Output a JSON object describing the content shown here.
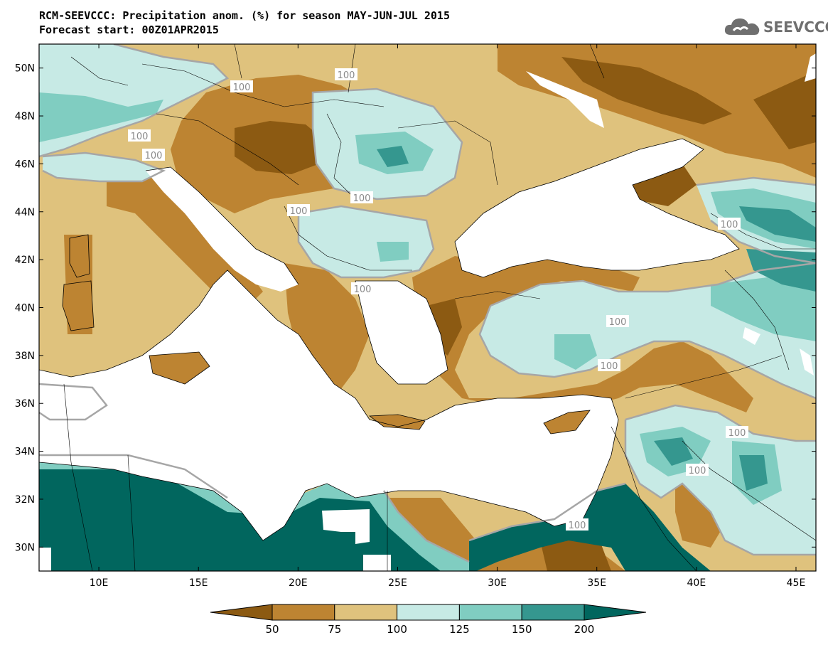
{
  "title": {
    "line1": "RCM-SEEVCCC: Precipitation anom. (%) for season MAY-JUN-JUL 2015",
    "line2": "Forecast start: 00Z01APR2015"
  },
  "logo": {
    "text": "SEEVCCC",
    "icon": "cloud-icon"
  },
  "map": {
    "lon_range": [
      7,
      46
    ],
    "lat_range": [
      29,
      51
    ],
    "lon_ticks": [
      "10E",
      "15E",
      "20E",
      "25E",
      "30E",
      "35E",
      "40E",
      "45E"
    ],
    "lat_ticks": [
      "50N",
      "48N",
      "46N",
      "44N",
      "42N",
      "40N",
      "38N",
      "36N",
      "34N",
      "32N",
      "30N"
    ],
    "contour_labels": [
      "100",
      "100",
      "100",
      "100",
      "100",
      "100",
      "100",
      "100",
      "100",
      "100",
      "100",
      "100",
      "100"
    ]
  },
  "colorbar": {
    "colors": [
      "#8c5a12",
      "#bd8432",
      "#dfc27d",
      "#c7eae5",
      "#80cdc1",
      "#35978f",
      "#01665e"
    ],
    "boundaries": [
      "50",
      "75",
      "100",
      "125",
      "150",
      "200"
    ]
  }
}
